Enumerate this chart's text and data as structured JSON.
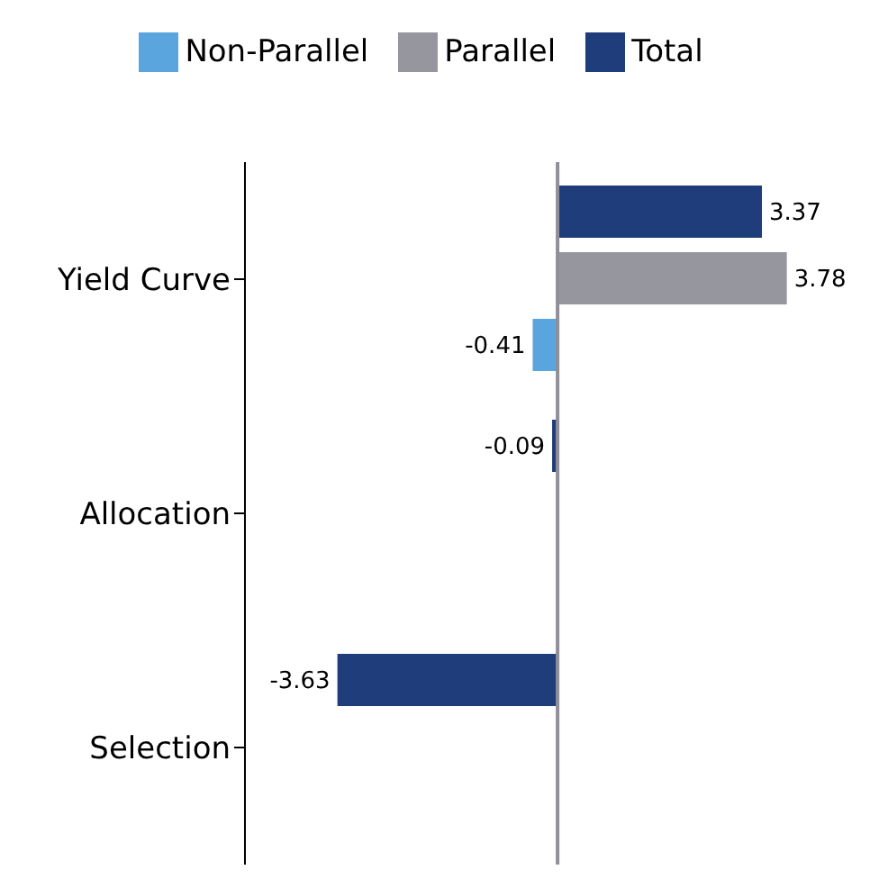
{
  "chart_data": {
    "type": "bar",
    "orientation": "horizontal",
    "categories": [
      "Yield Curve",
      "Allocation",
      "Selection"
    ],
    "series": [
      {
        "name": "Total",
        "color": "#1f3d7a",
        "values": [
          3.37,
          -0.09,
          -3.63
        ]
      },
      {
        "name": "Parallel",
        "color": "#96969f",
        "values": [
          3.78,
          null,
          null
        ]
      },
      {
        "name": "Non-Parallel",
        "color": "#5aa5de",
        "values": [
          -0.41,
          null,
          null
        ]
      }
    ],
    "data_labels": true,
    "legend": "top",
    "grid": false
  }
}
